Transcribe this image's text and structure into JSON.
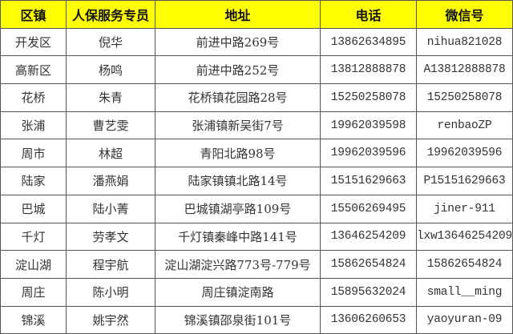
{
  "table": {
    "headers": [
      "区镇",
      "人保服务专员",
      "地址",
      "电话",
      "微信号"
    ],
    "header_bg": "#ffff00",
    "rows": [
      [
        "开发区",
        "倪华",
        "前进中路269号",
        "13862634895",
        "nihua821028"
      ],
      [
        "高新区",
        "杨鸣",
        "前进中路252号",
        "13812888878",
        "A13812888878"
      ],
      [
        "花桥",
        "朱青",
        "花桥镇花园路28号",
        "15250258078",
        "15250258078"
      ],
      [
        "张浦",
        "曹艺雯",
        "张浦镇新吴街7号",
        "19962039598",
        "renbaoZP"
      ],
      [
        "周市",
        "林超",
        "青阳北路98号",
        "19962039596",
        "19962039596"
      ],
      [
        "陆家",
        "潘燕娟",
        "陆家镇镇北路14号",
        "15151629663",
        "P15151629663"
      ],
      [
        "巴城",
        "陆小菁",
        "巴城镇湖亭路109号",
        "15506269495",
        "jiner-911"
      ],
      [
        "千灯",
        "劳孝文",
        "千灯镇秦峰中路141号",
        "13646254209",
        "lxw13646254209"
      ],
      [
        "淀山湖",
        "程宇航",
        "淀山湖淀兴路773号-779号",
        "15862654824",
        "15862654824"
      ],
      [
        "周庄",
        "陈小明",
        "周庄镇淀南路",
        "15895632024",
        "small__ming"
      ],
      [
        "锦溪",
        "姚宇然",
        "锦溪镇邵泉街101号",
        "13606260653",
        "yaoyuran-09"
      ]
    ]
  }
}
